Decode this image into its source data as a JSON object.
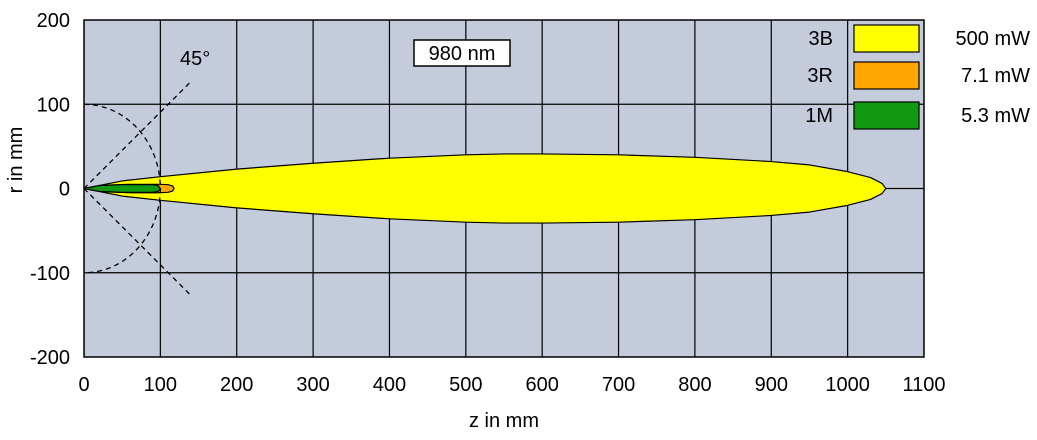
{
  "chart_data": {
    "type": "area",
    "title": "",
    "xlabel": "z in mm",
    "ylabel": "r in mm",
    "xlim": [
      0,
      1100
    ],
    "ylim": [
      -200,
      200
    ],
    "x_ticks": [
      "0",
      "100",
      "200",
      "300",
      "400",
      "500",
      "600",
      "700",
      "800",
      "900",
      "1000",
      "1100"
    ],
    "y_ticks": [
      "200",
      "100",
      "0",
      "-100",
      "-200"
    ],
    "grid": true,
    "background_color": "#c4cbdb",
    "legend_position": "top-right",
    "annotations": {
      "wavelength": "980 nm",
      "angle": "45°"
    },
    "series": [
      {
        "name": "3B",
        "power": "500 mW",
        "color": "#ffff00",
        "z_end": 1050,
        "profile": [
          [
            0,
            0
          ],
          [
            50,
            9
          ],
          [
            100,
            14
          ],
          [
            200,
            23
          ],
          [
            300,
            30
          ],
          [
            400,
            36
          ],
          [
            500,
            40
          ],
          [
            550,
            41
          ],
          [
            600,
            41
          ],
          [
            700,
            40
          ],
          [
            800,
            37
          ],
          [
            900,
            32
          ],
          [
            950,
            28
          ],
          [
            1000,
            20
          ],
          [
            1030,
            13
          ],
          [
            1045,
            6
          ],
          [
            1050,
            0
          ]
        ]
      },
      {
        "name": "3R",
        "power": "7.1 mW",
        "color": "#ffa500",
        "z_end": 118,
        "profile": [
          [
            0,
            0
          ],
          [
            30,
            4
          ],
          [
            60,
            5
          ],
          [
            100,
            5
          ],
          [
            110,
            4.5
          ],
          [
            116,
            3
          ],
          [
            118,
            0
          ]
        ]
      },
      {
        "name": "1M",
        "power": "5.3 mW",
        "color": "#119911",
        "z_end": 100,
        "profile": [
          [
            0,
            0
          ],
          [
            20,
            3.5
          ],
          [
            50,
            4.5
          ],
          [
            90,
            4.5
          ],
          [
            97,
            3.5
          ],
          [
            100,
            0
          ]
        ]
      }
    ],
    "reference_lines": {
      "circle_radius": 100,
      "angle_deg": 45
    }
  }
}
